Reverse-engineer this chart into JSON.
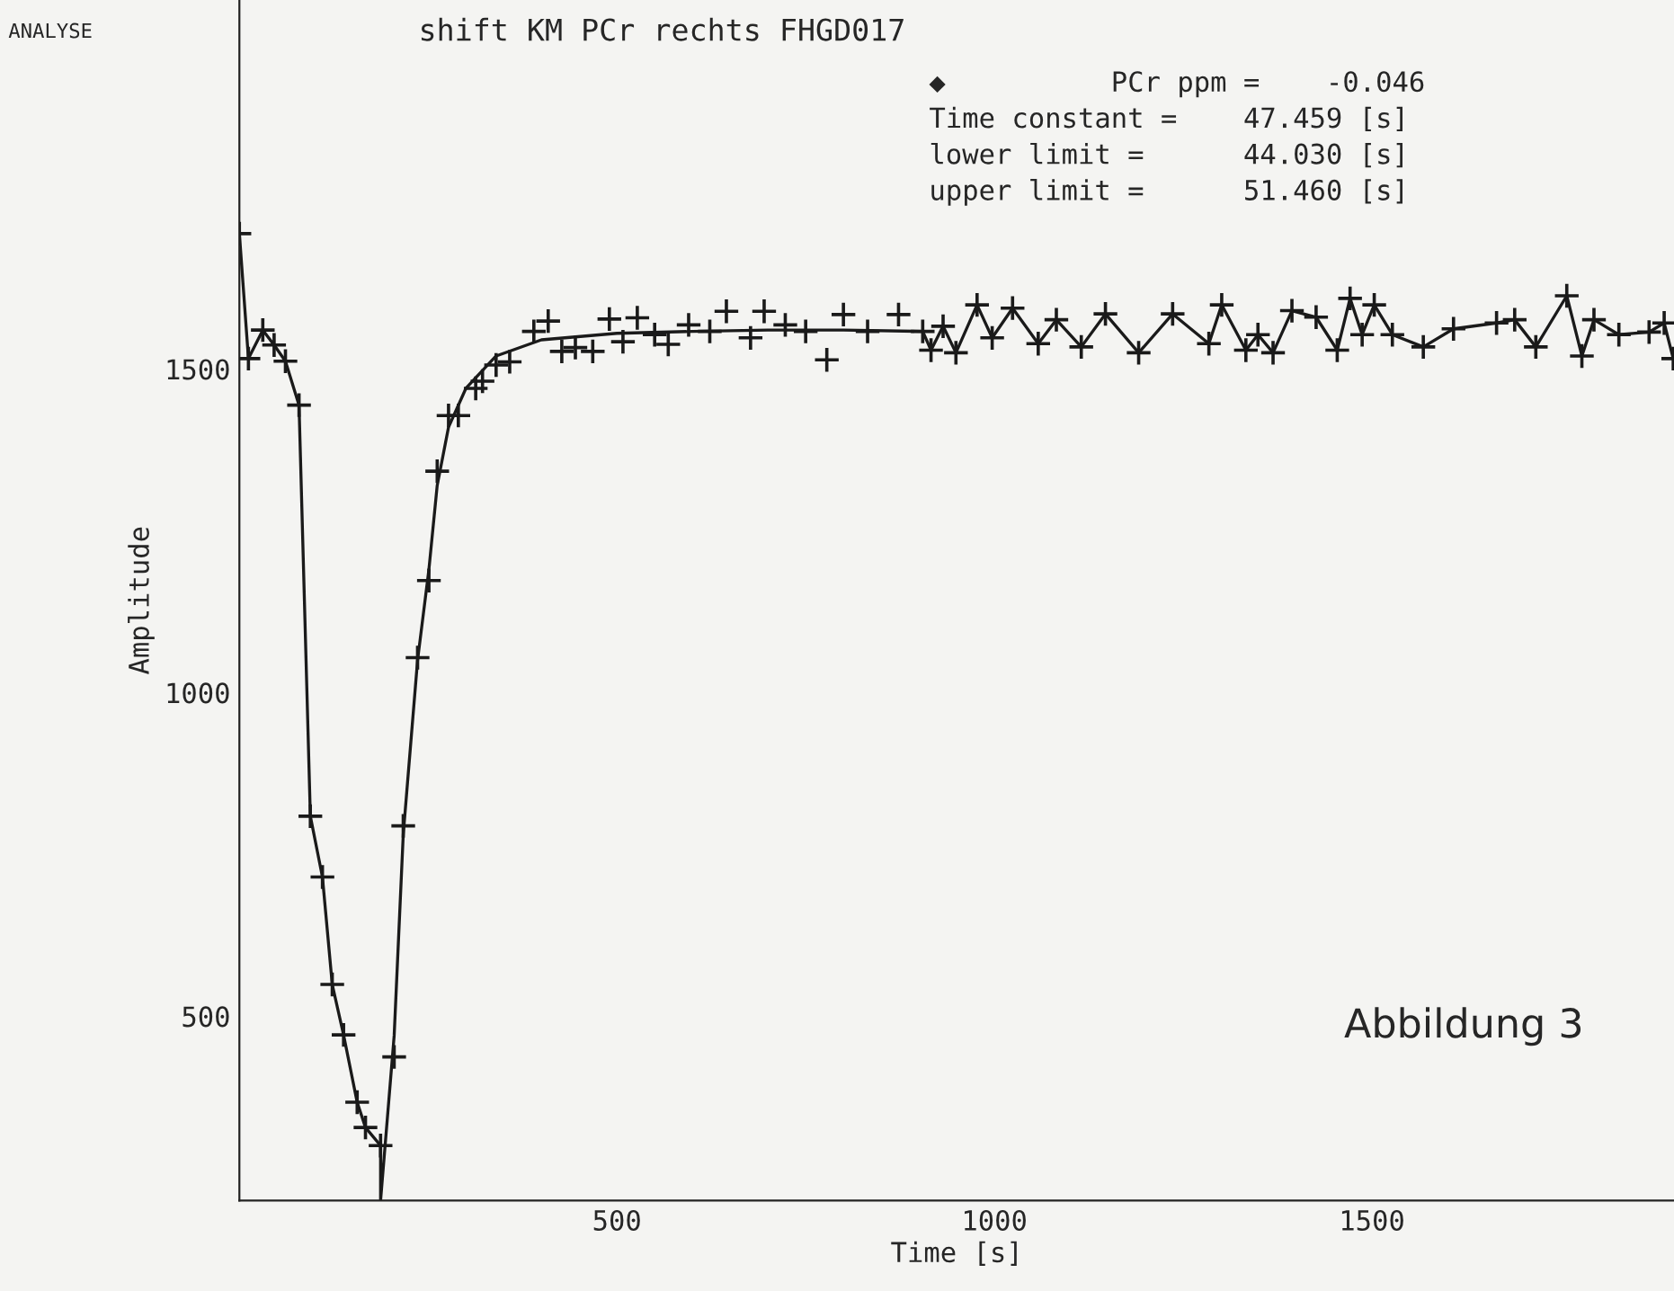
{
  "chart_data": {
    "type": "scatter",
    "title": "shift KM PCr rechts FHGD017",
    "xlabel": "Time [s]",
    "ylabel": "Amplitude",
    "annotations": [
      "ANALYSE",
      "◆          PCr ppm =    -0.046",
      "Time constant =    47.459 [s]",
      "lower limit =      44.030 [s]",
      "upper limit =      51.460 [s]",
      "Abbildung 3"
    ],
    "xlim": [
      0,
      1900
    ],
    "ylim": [
      215,
      2070
    ],
    "xticks": [
      500,
      1000,
      1500
    ],
    "yticks": [
      500,
      1000,
      1500
    ],
    "grid": false,
    "legend": false,
    "marker": "cross",
    "series": [
      {
        "color": "#1a1a1a",
        "x": [
          0,
          12,
          31,
          46,
          61,
          79,
          94,
          110,
          123,
          138,
          156,
          167,
          187,
          205,
          217,
          236,
          251,
          262,
          277,
          290,
          313,
          322,
          340,
          358,
          390,
          409,
          427,
          445,
          468,
          490,
          508,
          527,
          550,
          568,
          595,
          623,
          645,
          677,
          695,
          723,
          750,
          778,
          800,
          832,
          873,
          905,
          916,
          932,
          949,
          977,
          997,
          1024,
          1058,
          1082,
          1115,
          1147,
          1191,
          1236,
          1284,
          1301,
          1333,
          1349,
          1369,
          1394,
          1426,
          1454,
          1471,
          1487,
          1503,
          1527,
          1568,
          1608,
          1665,
          1689,
          1717,
          1758,
          1778,
          1794,
          1827,
          1867,
          1887,
          1899
        ],
        "values": [
          1709,
          1516,
          1560,
          1537,
          1512,
          1444,
          809,
          715,
          549,
          471,
          367,
          328,
          300,
          437,
          794,
          1054,
          1173,
          1342,
          1428,
          1428,
          1470,
          1481,
          1506,
          1511,
          1558,
          1574,
          1527,
          1533,
          1527,
          1577,
          1542,
          1579,
          1553,
          1538,
          1568,
          1558,
          1589,
          1548,
          1589,
          1568,
          1558,
          1514,
          1584,
          1558,
          1584,
          1558,
          1529,
          1566,
          1525,
          1599,
          1548,
          1594,
          1539,
          1576,
          1534,
          1585,
          1525,
          1585,
          1539,
          1599,
          1529,
          1553,
          1525,
          1590,
          1580,
          1529,
          1609,
          1553,
          1599,
          1553,
          1534,
          1562,
          1571,
          1576,
          1534,
          1613,
          1520,
          1576,
          1553,
          1557,
          1571,
          1516
        ]
      },
      {
        "type": "line",
        "color": "#1a1a1a",
        "marker": "none",
        "line_style": "solid",
        "x": [
          0,
          12,
          31,
          46,
          61,
          79,
          94,
          110,
          123,
          138,
          156,
          167,
          187,
          187,
          205,
          217,
          236,
          251,
          262,
          277,
          300,
          340,
          400,
          500,
          600,
          700,
          800,
          905,
          916,
          932,
          949,
          977,
          997,
          1024,
          1058,
          1082,
          1115,
          1147,
          1191,
          1236,
          1284,
          1301,
          1333,
          1349,
          1369,
          1394,
          1426,
          1454,
          1471,
          1487,
          1503,
          1527,
          1568,
          1608,
          1665,
          1689,
          1717,
          1758,
          1778,
          1794,
          1827,
          1867,
          1887,
          1899
        ],
        "values": [
          1709,
          1516,
          1560,
          1537,
          1512,
          1444,
          809,
          715,
          549,
          471,
          367,
          328,
          300,
          215,
          470,
          780,
          1050,
          1190,
          1320,
          1410,
          1470,
          1520,
          1545,
          1555,
          1558,
          1560,
          1560,
          1558,
          1529,
          1566,
          1525,
          1599,
          1548,
          1594,
          1539,
          1576,
          1534,
          1585,
          1525,
          1585,
          1539,
          1599,
          1529,
          1553,
          1525,
          1590,
          1580,
          1529,
          1609,
          1553,
          1599,
          1553,
          1534,
          1562,
          1571,
          1576,
          1534,
          1613,
          1520,
          1576,
          1553,
          1557,
          1571,
          1516
        ]
      }
    ]
  }
}
